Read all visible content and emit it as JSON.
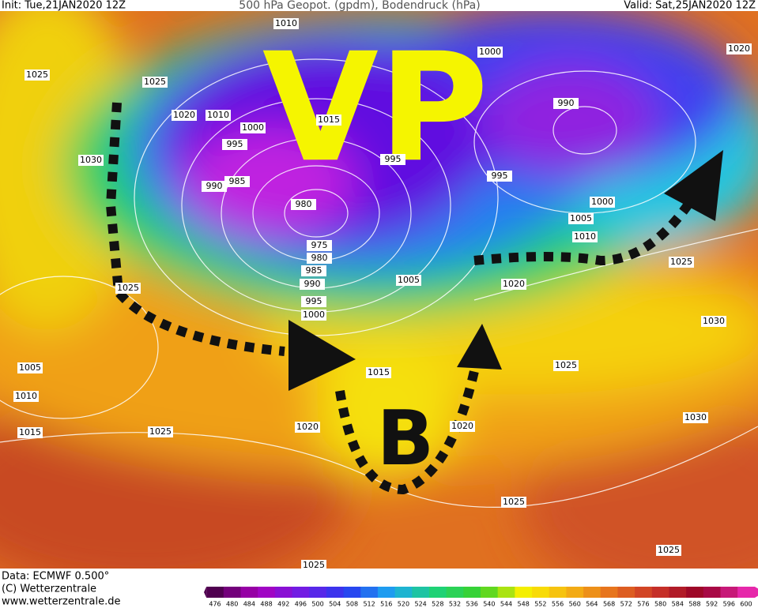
{
  "header": {
    "init": "Init: Tue,21JAN2020 12Z",
    "title": "500 hPa Geopot. (gpdm), Bodendruck (hPa)",
    "valid": "Valid: Sat,25JAN2020 12Z"
  },
  "annotations": {
    "vp": "VP",
    "b": "B"
  },
  "isobar_labels": [
    "1010",
    "1000",
    "1020",
    "1025",
    "1025",
    "990",
    "1020",
    "1010",
    "1015",
    "1000",
    "995",
    "995",
    "1030",
    "985",
    "990",
    "995",
    "980",
    "1000",
    "1005",
    "1010",
    "975",
    "980",
    "985",
    "1025",
    "990",
    "1025",
    "1005",
    "1020",
    "995",
    "1000",
    "1030",
    "1025",
    "1005",
    "1015",
    "1010",
    "1030",
    "1015",
    "1025",
    "1020",
    "1020",
    "1025",
    "1025",
    "1025"
  ],
  "footer": {
    "data": "Data: ECMWF  0.500°",
    "copyright": "(C) Wetterzentrale",
    "url": "www.wetterzentrale.de"
  },
  "colorbar_labels": [
    "476",
    "480",
    "484",
    "488",
    "492",
    "496",
    "500",
    "504",
    "508",
    "512",
    "516",
    "520",
    "524",
    "528",
    "532",
    "536",
    "540",
    "544",
    "548",
    "552",
    "556",
    "560",
    "564",
    "568",
    "572",
    "576",
    "580",
    "584",
    "588",
    "592",
    "596",
    "600"
  ]
}
